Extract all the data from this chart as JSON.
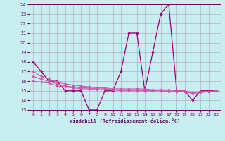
{
  "xlabel": "Windchill (Refroidissement éolien,°C)",
  "xlim": [
    -0.5,
    23.5
  ],
  "ylim": [
    13,
    24
  ],
  "yticks": [
    13,
    14,
    15,
    16,
    17,
    18,
    19,
    20,
    21,
    22,
    23,
    24
  ],
  "xticks": [
    0,
    1,
    2,
    3,
    4,
    5,
    6,
    7,
    8,
    9,
    10,
    11,
    12,
    13,
    14,
    15,
    16,
    17,
    18,
    19,
    20,
    21,
    22,
    23
  ],
  "background_color": "#c8eef0",
  "grid_color": "#b0b0cc",
  "line_color": "#990077",
  "line_color2": "#cc55aa",
  "lines": [
    {
      "x": [
        0,
        1,
        2,
        3,
        4,
        5,
        6,
        7,
        8,
        9,
        10,
        11,
        12,
        13,
        14,
        15,
        16,
        17,
        18,
        19,
        20,
        21,
        22,
        23
      ],
      "y": [
        18,
        17,
        16,
        16,
        15,
        15,
        15,
        13,
        13,
        15,
        15,
        17,
        21,
        21,
        15,
        19,
        23,
        24,
        15,
        15,
        14,
        15,
        15,
        15
      ]
    },
    {
      "x": [
        0,
        1,
        2,
        3,
        4,
        5,
        6,
        7,
        8,
        9,
        10,
        11,
        12,
        13,
        14,
        15,
        16,
        17,
        18,
        19,
        20,
        21,
        22,
        23
      ],
      "y": [
        17,
        16.5,
        16.2,
        15.9,
        15.7,
        15.6,
        15.5,
        15.4,
        15.3,
        15.3,
        15.2,
        15.2,
        15.2,
        15.2,
        15.2,
        15.1,
        15.1,
        15.1,
        15.0,
        15.0,
        14.8,
        14.9,
        14.9,
        15.0
      ]
    },
    {
      "x": [
        0,
        1,
        2,
        3,
        4,
        5,
        6,
        7,
        8,
        9,
        10,
        11,
        12,
        13,
        14,
        15,
        16,
        17,
        18,
        19,
        20,
        21,
        22,
        23
      ],
      "y": [
        16.5,
        16.2,
        16.0,
        15.7,
        15.5,
        15.4,
        15.3,
        15.3,
        15.2,
        15.2,
        15.1,
        15.1,
        15.1,
        15.1,
        15.0,
        15.0,
        15.0,
        15.0,
        14.9,
        14.9,
        14.8,
        14.9,
        14.9,
        15.0
      ]
    },
    {
      "x": [
        0,
        1,
        2,
        3,
        4,
        5,
        6,
        7,
        8,
        9,
        10,
        11,
        12,
        13,
        14,
        15,
        16,
        17,
        18,
        19,
        20,
        21,
        22,
        23
      ],
      "y": [
        16.0,
        15.9,
        15.8,
        15.5,
        15.4,
        15.3,
        15.2,
        15.2,
        15.1,
        15.1,
        15.1,
        15.0,
        15.0,
        15.0,
        15.0,
        15.0,
        15.0,
        14.9,
        14.9,
        14.9,
        14.7,
        14.8,
        14.9,
        15.0
      ]
    }
  ]
}
